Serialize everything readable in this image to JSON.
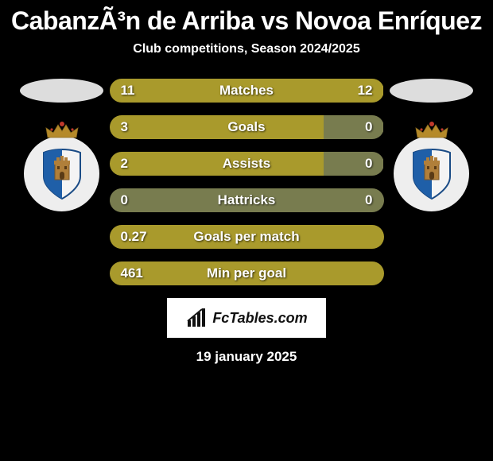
{
  "title": "CabanzÃ³n de Arriba vs Novoa Enríquez",
  "subtitle": "Club competitions, Season 2024/2025",
  "date": "19 january 2025",
  "brand": "FcTables.com",
  "colors": {
    "bar_fill": "#a99a2c",
    "bar_empty": "#787c4f",
    "background": "#000000",
    "text": "#ffffff",
    "brand_bg": "#ffffff",
    "crown": "#b58a2a",
    "crown_jewel": "#c0392b",
    "shield_blue": "#1f5fa8",
    "shield_white": "#f4f4f4",
    "shield_outline": "#1a4b85",
    "castle": "#b07f3a"
  },
  "bars": [
    {
      "label": "Matches",
      "left_text": "11",
      "right_text": "12",
      "left_pct": 47.8,
      "right_pct": 52.2,
      "left_filled": true,
      "right_filled": true
    },
    {
      "label": "Goals",
      "left_text": "3",
      "right_text": "0",
      "left_pct": 78,
      "right_pct": 22,
      "left_filled": true,
      "right_filled": false
    },
    {
      "label": "Assists",
      "left_text": "2",
      "right_text": "0",
      "left_pct": 78,
      "right_pct": 22,
      "left_filled": true,
      "right_filled": false
    },
    {
      "label": "Hattricks",
      "left_text": "0",
      "right_text": "0",
      "left_pct": 50,
      "right_pct": 50,
      "left_filled": false,
      "right_filled": false
    },
    {
      "label": "Goals per match",
      "left_text": "0.27",
      "right_text": "",
      "left_pct": 100,
      "right_pct": 0,
      "left_filled": true,
      "right_filled": false
    },
    {
      "label": "Min per goal",
      "left_text": "461",
      "right_text": "",
      "left_pct": 100,
      "right_pct": 0,
      "left_filled": true,
      "right_filled": false
    }
  ]
}
